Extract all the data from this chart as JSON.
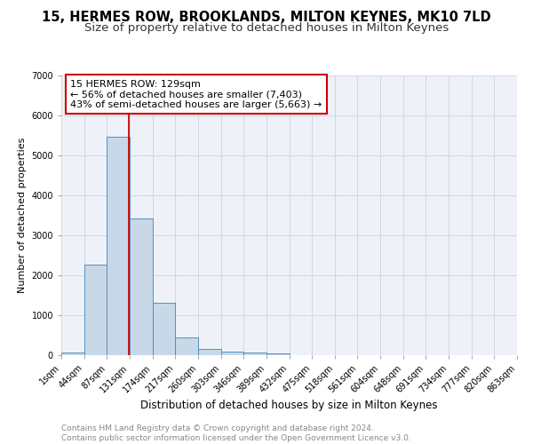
{
  "title1": "15, HERMES ROW, BROOKLANDS, MILTON KEYNES, MK10 7LD",
  "title2": "Size of property relative to detached houses in Milton Keynes",
  "xlabel": "Distribution of detached houses by size in Milton Keynes",
  "ylabel": "Number of detached properties",
  "bar_values": [
    60,
    2270,
    5460,
    3420,
    1310,
    440,
    165,
    95,
    70,
    45,
    0,
    0,
    0,
    0,
    0,
    0,
    0,
    0,
    0,
    0
  ],
  "bar_color": "#c8d8e8",
  "bar_edge_color": "#5090c0",
  "categories": [
    "1sqm",
    "44sqm",
    "87sqm",
    "131sqm",
    "174sqm",
    "217sqm",
    "260sqm",
    "303sqm",
    "346sqm",
    "389sqm",
    "432sqm",
    "475sqm",
    "518sqm",
    "561sqm",
    "604sqm",
    "648sqm",
    "691sqm",
    "734sqm",
    "777sqm",
    "820sqm",
    "863sqm"
  ],
  "ylim": [
    0,
    7000
  ],
  "yticks": [
    0,
    1000,
    2000,
    3000,
    4000,
    5000,
    6000,
    7000
  ],
  "annotation_text": "15 HERMES ROW: 129sqm\n← 56% of detached houses are smaller (7,403)\n43% of semi-detached houses are larger (5,663) →",
  "annotation_box_color": "white",
  "annotation_box_edge_color": "#cc0000",
  "vline_color": "#cc0000",
  "grid_color": "#ccd8e8",
  "background_color": "#eef2f8",
  "footer_text": "Contains HM Land Registry data © Crown copyright and database right 2024.\nContains public sector information licensed under the Open Government Licence v3.0.",
  "title1_fontsize": 10.5,
  "title2_fontsize": 9.5,
  "xlabel_fontsize": 8.5,
  "ylabel_fontsize": 8,
  "tick_fontsize": 7,
  "annotation_fontsize": 8,
  "footer_fontsize": 6.5
}
